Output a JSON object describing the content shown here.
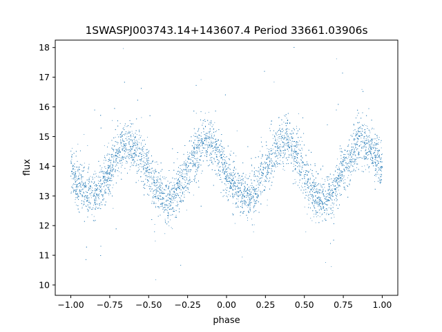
{
  "chart_data": {
    "type": "scatter",
    "title": "1SWASPJ003743.14+143607.4 Period 33661.03906s",
    "xlabel": "phase",
    "ylabel": "flux",
    "xlim": [
      -1.1,
      1.1
    ],
    "ylim": [
      9.65,
      18.25
    ],
    "x_ticks": [
      -1.0,
      -0.75,
      -0.5,
      -0.25,
      0.0,
      0.25,
      0.5,
      0.75,
      1.0
    ],
    "x_tick_labels": [
      "−1.00",
      "−0.75",
      "−0.50",
      "−0.25",
      "0.00",
      "0.25",
      "0.50",
      "0.75",
      "1.00"
    ],
    "y_ticks": [
      10,
      11,
      12,
      13,
      14,
      15,
      16,
      17,
      18
    ],
    "y_tick_labels": [
      "10",
      "11",
      "12",
      "13",
      "14",
      "15",
      "16",
      "17",
      "18"
    ],
    "grid": false,
    "legend": "none",
    "marker_color": "#1f77b4",
    "series": [
      {
        "x": [
          -1.0,
          -0.95,
          -0.9,
          -0.85,
          -0.8,
          -0.75,
          -0.7,
          -0.65,
          -0.6,
          -0.55,
          -0.5,
          -0.45,
          -0.4,
          -0.35,
          -0.3,
          -0.25,
          -0.2,
          -0.15,
          -0.1,
          -0.05,
          0.0,
          0.05,
          0.1,
          0.15,
          0.2,
          0.25,
          0.3,
          0.35,
          0.4,
          0.45,
          0.5,
          0.55,
          0.6,
          0.65,
          0.7,
          0.75,
          0.8,
          0.85,
          0.9,
          0.95,
          1.0
        ],
        "y": [
          13.9,
          13.4,
          13.1,
          13.0,
          13.3,
          13.9,
          14.4,
          14.8,
          14.7,
          14.4,
          13.8,
          13.2,
          12.9,
          12.9,
          13.3,
          13.9,
          14.4,
          14.8,
          14.8,
          14.4,
          13.8,
          13.3,
          13.0,
          13.0,
          13.3,
          13.9,
          14.4,
          14.8,
          14.8,
          14.4,
          13.8,
          13.2,
          12.9,
          12.9,
          13.3,
          13.9,
          14.4,
          14.8,
          14.7,
          14.4,
          13.9
        ],
        "scatter_sd": 0.4,
        "point_count": 9000
      }
    ]
  }
}
